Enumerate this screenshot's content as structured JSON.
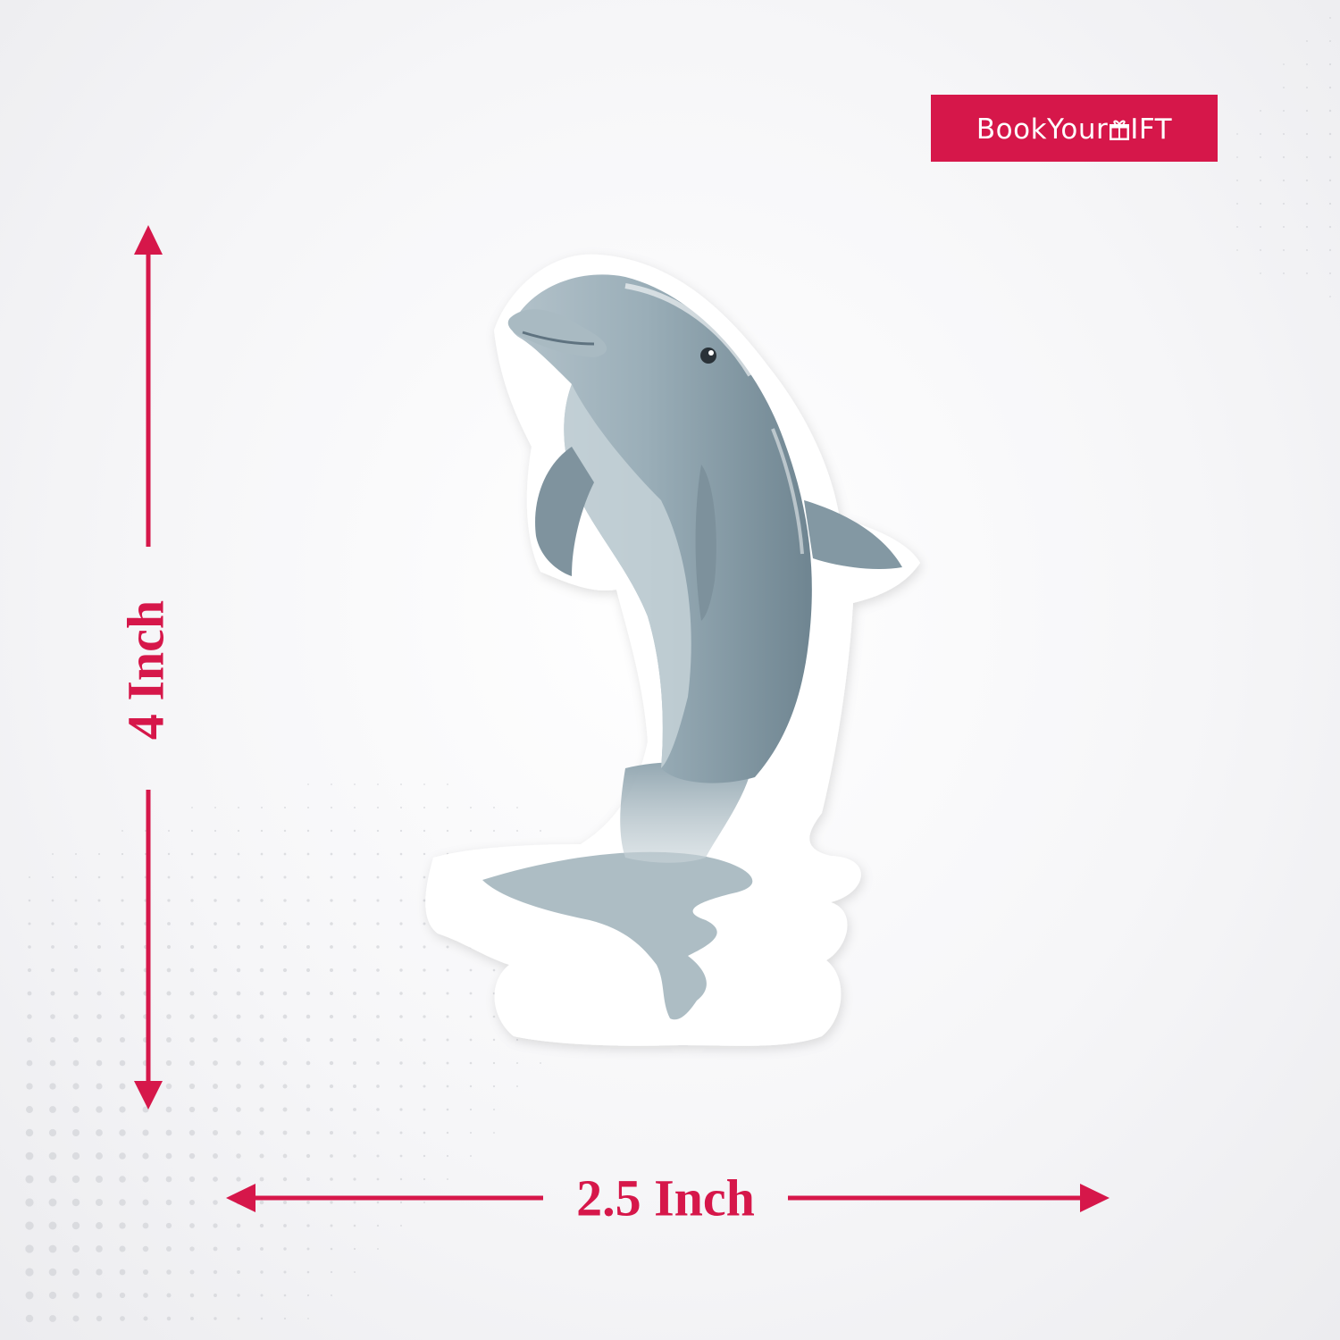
{
  "brand": {
    "name_prefix": "BookYour",
    "name_suffix": "IFT",
    "color": "#d6174a"
  },
  "dimensions": {
    "height_label": "4 Inch",
    "width_label": "2.5 Inch",
    "arrow_color": "#d6174a"
  },
  "sticker": {
    "subject": "dolphin-icon",
    "body_color": "#8fa3ad",
    "border_color": "#ffffff"
  }
}
